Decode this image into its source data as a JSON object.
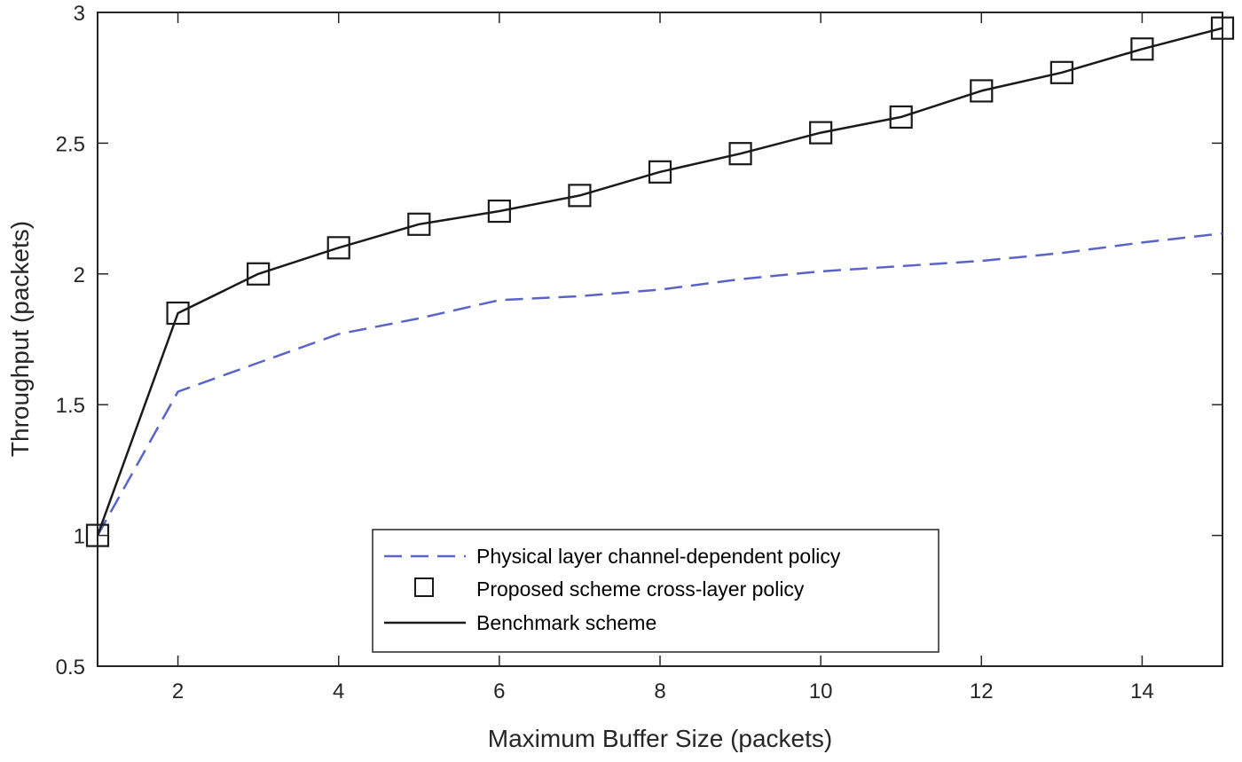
{
  "chart_data": {
    "type": "line",
    "title": "",
    "xlabel": "Maximum Buffer Size (packets)",
    "ylabel": "Throughput (packets)",
    "xlim": [
      1,
      15
    ],
    "ylim": [
      0.5,
      3
    ],
    "xticks": [
      2,
      4,
      6,
      8,
      10,
      12,
      14
    ],
    "yticks": [
      0.5,
      1,
      1.5,
      2,
      2.5,
      3
    ],
    "x": [
      1,
      2,
      3,
      4,
      5,
      6,
      7,
      8,
      9,
      10,
      11,
      12,
      13,
      14,
      15
    ],
    "series": [
      {
        "name": "Physical layer channel-dependent policy",
        "style": "dashed",
        "color": "#5a63c8",
        "values": [
          1.0,
          1.55,
          1.66,
          1.77,
          1.83,
          1.9,
          1.915,
          1.94,
          1.98,
          2.01,
          2.03,
          2.05,
          2.08,
          2.12,
          2.155
        ]
      },
      {
        "name": "Proposed scheme cross-layer policy",
        "style": "markers",
        "color": "#1a1a1a",
        "values": [
          1.0,
          1.85,
          2.0,
          2.1,
          2.19,
          2.24,
          2.3,
          2.39,
          2.46,
          2.54,
          2.6,
          2.7,
          2.77,
          2.86,
          2.94
        ]
      },
      {
        "name": "Benchmark scheme",
        "style": "solid",
        "color": "#1a1a1a",
        "values": [
          1.0,
          1.85,
          2.0,
          2.1,
          2.19,
          2.24,
          2.3,
          2.39,
          2.46,
          2.54,
          2.6,
          2.7,
          2.77,
          2.86,
          2.94
        ]
      }
    ],
    "legend": {
      "position": "bottom-center",
      "entries": [
        "Physical layer channel-dependent policy",
        "Proposed scheme cross-layer policy",
        "Benchmark scheme"
      ]
    },
    "grid": false
  }
}
